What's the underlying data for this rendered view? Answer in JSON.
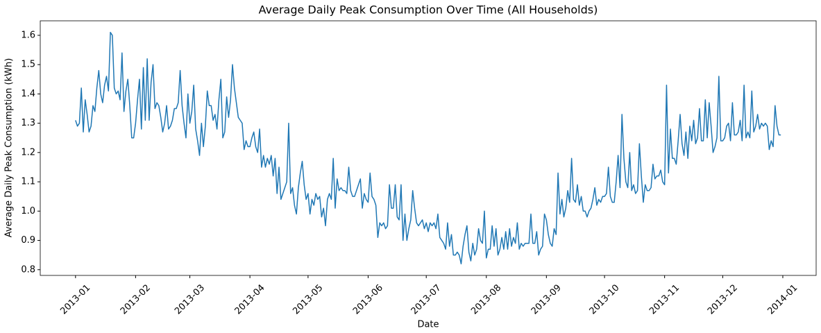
{
  "chart_data": {
    "type": "line",
    "title": "Average Daily Peak Consumption Over Time (All Households)",
    "x_label": "Date",
    "y_label": "Average Daily Peak Consumption (kWh)",
    "color": "#1f77b4",
    "xlim": [
      -18.2,
      382.2
    ],
    "xticks": [
      {
        "value": 0,
        "label": "2013-01"
      },
      {
        "value": 31,
        "label": "2013-02"
      },
      {
        "value": 59,
        "label": "2013-03"
      },
      {
        "value": 90,
        "label": "2013-04"
      },
      {
        "value": 120,
        "label": "2013-05"
      },
      {
        "value": 151,
        "label": "2013-06"
      },
      {
        "value": 181,
        "label": "2013-07"
      },
      {
        "value": 212,
        "label": "2013-08"
      },
      {
        "value": 243,
        "label": "2013-09"
      },
      {
        "value": 273,
        "label": "2013-10"
      },
      {
        "value": 304,
        "label": "2013-11"
      },
      {
        "value": 334,
        "label": "2013-12"
      },
      {
        "value": 365,
        "label": "2014-01"
      }
    ],
    "ylim": [
      0.7805,
      1.6495
    ],
    "yticks": [
      0.8,
      0.9,
      {
        "value": 1,
        "label": "1.0"
      },
      1.1,
      1.2,
      1.3,
      1.4,
      1.5,
      1.6
    ],
    "x": [
      0,
      1,
      2,
      3,
      4,
      5,
      6,
      7,
      8,
      9,
      10,
      11,
      12,
      13,
      14,
      15,
      16,
      17,
      18,
      19,
      20,
      21,
      22,
      23,
      24,
      25,
      26,
      27,
      28,
      29,
      30,
      31,
      32,
      33,
      34,
      35,
      36,
      37,
      38,
      39,
      40,
      41,
      42,
      43,
      44,
      45,
      46,
      47,
      48,
      49,
      50,
      51,
      52,
      53,
      54,
      55,
      56,
      57,
      58,
      59,
      60,
      61,
      62,
      63,
      64,
      65,
      66,
      67,
      68,
      69,
      70,
      71,
      72,
      73,
      74,
      75,
      76,
      77,
      78,
      79,
      80,
      81,
      82,
      83,
      84,
      85,
      86,
      87,
      88,
      89,
      90,
      91,
      92,
      93,
      94,
      95,
      96,
      97,
      98,
      99,
      100,
      101,
      102,
      103,
      104,
      105,
      106,
      107,
      108,
      109,
      110,
      111,
      112,
      113,
      114,
      115,
      116,
      117,
      118,
      119,
      120,
      121,
      122,
      123,
      124,
      125,
      126,
      127,
      128,
      129,
      130,
      131,
      132,
      133,
      134,
      135,
      136,
      137,
      138,
      139,
      140,
      141,
      142,
      143,
      144,
      145,
      146,
      147,
      148,
      149,
      150,
      151,
      152,
      153,
      154,
      155,
      156,
      157,
      158,
      159,
      160,
      161,
      162,
      163,
      164,
      165,
      166,
      167,
      168,
      169,
      170,
      171,
      172,
      173,
      174,
      175,
      176,
      177,
      178,
      179,
      180,
      181,
      182,
      183,
      184,
      185,
      186,
      187,
      188,
      189,
      190,
      191,
      192,
      193,
      194,
      195,
      196,
      197,
      198,
      199,
      200,
      201,
      202,
      203,
      204,
      205,
      206,
      207,
      208,
      209,
      210,
      211,
      212,
      213,
      214,
      215,
      216,
      217,
      218,
      219,
      220,
      221,
      222,
      223,
      224,
      225,
      226,
      227,
      228,
      229,
      230,
      231,
      232,
      233,
      234,
      235,
      236,
      237,
      238,
      239,
      240,
      241,
      242,
      243,
      244,
      245,
      246,
      247,
      248,
      249,
      250,
      251,
      252,
      253,
      254,
      255,
      256,
      257,
      258,
      259,
      260,
      261,
      262,
      263,
      264,
      265,
      266,
      267,
      268,
      269,
      270,
      271,
      272,
      273,
      274,
      275,
      276,
      277,
      278,
      279,
      280,
      281,
      282,
      283,
      284,
      285,
      286,
      287,
      288,
      289,
      290,
      291,
      292,
      293,
      294,
      295,
      296,
      297,
      298,
      299,
      300,
      301,
      302,
      303,
      304,
      305,
      306,
      307,
      308,
      309,
      310,
      311,
      312,
      313,
      314,
      315,
      316,
      317,
      318,
      319,
      320,
      321,
      322,
      323,
      324,
      325,
      326,
      327,
      328,
      329,
      330,
      331,
      332,
      333,
      334,
      335,
      336,
      337,
      338,
      339,
      340,
      341,
      342,
      343,
      344,
      345,
      346,
      347,
      348,
      349,
      350,
      351,
      352,
      353,
      354,
      355,
      356,
      357,
      358,
      359,
      360,
      361,
      362,
      363,
      364
    ],
    "values": [
      1.31,
      1.29,
      1.3,
      1.42,
      1.27,
      1.38,
      1.33,
      1.27,
      1.29,
      1.36,
      1.34,
      1.42,
      1.48,
      1.4,
      1.37,
      1.43,
      1.46,
      1.41,
      1.61,
      1.6,
      1.42,
      1.4,
      1.41,
      1.38,
      1.54,
      1.34,
      1.41,
      1.45,
      1.36,
      1.25,
      1.25,
      1.3,
      1.38,
      1.45,
      1.28,
      1.49,
      1.31,
      1.52,
      1.31,
      1.44,
      1.5,
      1.35,
      1.37,
      1.36,
      1.32,
      1.27,
      1.3,
      1.36,
      1.28,
      1.29,
      1.31,
      1.35,
      1.35,
      1.37,
      1.48,
      1.36,
      1.3,
      1.25,
      1.4,
      1.3,
      1.34,
      1.43,
      1.28,
      1.24,
      1.19,
      1.3,
      1.22,
      1.29,
      1.41,
      1.36,
      1.36,
      1.31,
      1.33,
      1.28,
      1.38,
      1.45,
      1.25,
      1.27,
      1.39,
      1.32,
      1.38,
      1.5,
      1.42,
      1.37,
      1.32,
      1.31,
      1.3,
      1.21,
      1.24,
      1.22,
      1.22,
      1.25,
      1.27,
      1.22,
      1.2,
      1.28,
      1.15,
      1.19,
      1.15,
      1.18,
      1.16,
      1.19,
      1.12,
      1.18,
      1.06,
      1.15,
      1.04,
      1.06,
      1.08,
      1.1,
      1.3,
      1.06,
      1.08,
      1.02,
      0.99,
      1.08,
      1.13,
      1.17,
      1.09,
      1.04,
      1.06,
      0.99,
      1.04,
      1.02,
      1.06,
      1.04,
      1.05,
      0.98,
      1.01,
      0.95,
      1.04,
      1.06,
      1.04,
      1.18,
      1.01,
      1.11,
      1.07,
      1.08,
      1.07,
      1.07,
      1.06,
      1.15,
      1.07,
      1.05,
      1.05,
      1.07,
      1.09,
      1.11,
      1.01,
      1.06,
      1.04,
      1.03,
      1.13,
      1.05,
      1.04,
      1.02,
      0.91,
      0.96,
      0.95,
      0.96,
      0.94,
      0.95,
      1.09,
      1.01,
      1.01,
      1.09,
      0.98,
      0.97,
      1.09,
      0.9,
      0.99,
      0.9,
      0.94,
      0.97,
      1.07,
      1.01,
      0.96,
      0.95,
      0.96,
      0.97,
      0.94,
      0.96,
      0.93,
      0.96,
      0.95,
      0.96,
      0.94,
      0.99,
      0.91,
      0.9,
      0.89,
      0.87,
      0.96,
      0.88,
      0.92,
      0.85,
      0.85,
      0.86,
      0.85,
      0.82,
      0.88,
      0.92,
      0.95,
      0.86,
      0.83,
      0.89,
      0.85,
      0.87,
      0.94,
      0.9,
      0.89,
      1.0,
      0.84,
      0.87,
      0.87,
      0.95,
      0.88,
      0.94,
      0.85,
      0.87,
      0.91,
      0.87,
      0.93,
      0.87,
      0.94,
      0.88,
      0.91,
      0.89,
      0.96,
      0.87,
      0.89,
      0.88,
      0.89,
      0.89,
      0.89,
      0.99,
      0.89,
      0.89,
      0.93,
      0.85,
      0.87,
      0.88,
      0.99,
      0.97,
      0.92,
      0.89,
      0.88,
      0.94,
      0.92,
      1.13,
      0.99,
      1.04,
      0.98,
      1.01,
      1.07,
      1.03,
      1.18,
      1.04,
      1.03,
      1.09,
      1.02,
      1.05,
      1.0,
      1.0,
      0.98,
      1.0,
      1.01,
      1.04,
      1.08,
      1.02,
      1.04,
      1.03,
      1.05,
      1.05,
      1.06,
      1.15,
      1.05,
      1.03,
      1.03,
      1.1,
      1.19,
      1.08,
      1.33,
      1.18,
      1.1,
      1.08,
      1.2,
      1.07,
      1.09,
      1.06,
      1.07,
      1.23,
      1.12,
      1.03,
      1.09,
      1.07,
      1.07,
      1.08,
      1.16,
      1.11,
      1.12,
      1.12,
      1.14,
      1.1,
      1.09,
      1.43,
      1.13,
      1.28,
      1.18,
      1.18,
      1.16,
      1.24,
      1.33,
      1.23,
      1.19,
      1.27,
      1.18,
      1.29,
      1.24,
      1.31,
      1.23,
      1.25,
      1.35,
      1.24,
      1.24,
      1.38,
      1.25,
      1.37,
      1.29,
      1.2,
      1.22,
      1.25,
      1.46,
      1.24,
      1.24,
      1.25,
      1.29,
      1.3,
      1.24,
      1.37,
      1.26,
      1.26,
      1.27,
      1.31,
      1.24,
      1.43,
      1.25,
      1.27,
      1.25,
      1.41,
      1.27,
      1.29,
      1.33,
      1.28,
      1.3,
      1.29,
      1.3,
      1.29,
      1.21,
      1.24,
      1.22,
      1.36,
      1.29,
      1.26,
      1.26
    ]
  }
}
